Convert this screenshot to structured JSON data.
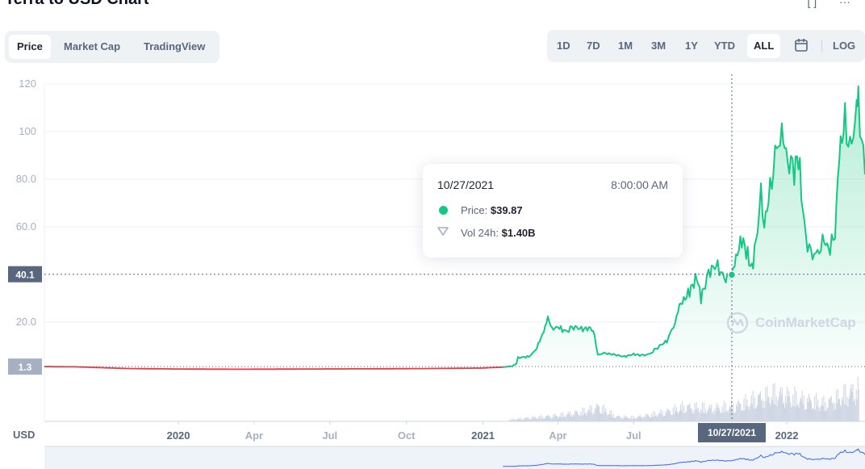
{
  "page": {
    "title": "Terra to USD Chart"
  },
  "tabs": [
    {
      "label": "Price",
      "active": true
    },
    {
      "label": "Market Cap",
      "active": false
    },
    {
      "label": "TradingView",
      "active": false
    }
  ],
  "ranges": [
    {
      "label": "1D",
      "active": false
    },
    {
      "label": "7D",
      "active": false
    },
    {
      "label": "1M",
      "active": false
    },
    {
      "label": "3M",
      "active": false
    },
    {
      "label": "1Y",
      "active": false
    },
    {
      "label": "YTD",
      "active": false
    },
    {
      "label": "ALL",
      "active": true
    }
  ],
  "range_extra": {
    "calendar_icon": "calendar-icon",
    "log_label": "LOG"
  },
  "tooltip": {
    "date": "10/27/2021",
    "time": "8:00:00 AM",
    "price_label": "Price:",
    "price_value": "$39.87",
    "vol_label": "Vol 24h:",
    "vol_value": "$1.40B"
  },
  "watermark": "CoinMarketCap",
  "currency_label": "USD",
  "crosshair": {
    "date_label": "10/27/2021",
    "price_label": "40.1",
    "ref_label": "1.3"
  },
  "colors": {
    "up": "#16c784",
    "down": "#ea3943",
    "volume": "#cfd6e4",
    "grid": "#eff2f5",
    "axis_text": "#a6b0c3"
  },
  "chart_data": {
    "type": "area",
    "y_ticks": [
      "20.0",
      "60.0",
      "80.0",
      "100",
      "120"
    ],
    "ylim": [
      0,
      120
    ],
    "x_ticks": [
      "2020",
      "Apr",
      "Jul",
      "Oct",
      "2021",
      "Apr",
      "Jul",
      "2022"
    ],
    "x_tick_dates": [
      "2020-01-01",
      "2020-04-01",
      "2020-07-01",
      "2020-10-01",
      "2021-01-01",
      "2021-04-01",
      "2021-07-01",
      "2022-01-01"
    ],
    "xlim": [
      "2019-07-24",
      "2022-04-05"
    ],
    "reference_price": 1.3,
    "series": [
      {
        "values": [
          [
            "2019-07-24",
            1.3
          ],
          [
            "2019-09-01",
            1.2
          ],
          [
            "2019-11-01",
            0.5
          ],
          [
            "2020-01-01",
            0.3
          ],
          [
            "2020-03-15",
            0.2
          ],
          [
            "2020-06-01",
            0.3
          ],
          [
            "2020-09-01",
            0.4
          ],
          [
            "2020-11-01",
            0.5
          ],
          [
            "2021-01-01",
            0.7
          ],
          [
            "2021-01-25",
            1.1
          ],
          [
            "2021-02-05",
            1.5
          ],
          [
            "2021-02-10",
            2.5
          ],
          [
            "2021-02-12",
            5.0
          ],
          [
            "2021-02-25",
            5.5
          ],
          [
            "2021-03-05",
            8.0
          ],
          [
            "2021-03-10",
            12.0
          ],
          [
            "2021-03-15",
            16.0
          ],
          [
            "2021-03-20",
            22.0
          ],
          [
            "2021-03-25",
            17.0
          ],
          [
            "2021-04-01",
            18.0
          ],
          [
            "2021-04-10",
            16.0
          ],
          [
            "2021-04-20",
            18.0
          ],
          [
            "2021-05-01",
            17.0
          ],
          [
            "2021-05-10",
            17.5
          ],
          [
            "2021-05-15",
            15.0
          ],
          [
            "2021-05-19",
            6.0
          ],
          [
            "2021-05-25",
            7.0
          ],
          [
            "2021-06-05",
            6.5
          ],
          [
            "2021-06-20",
            5.5
          ],
          [
            "2021-07-01",
            6.5
          ],
          [
            "2021-07-10",
            6.0
          ],
          [
            "2021-07-20",
            6.5
          ],
          [
            "2021-08-01",
            10.0
          ],
          [
            "2021-08-10",
            12.0
          ],
          [
            "2021-08-20",
            20.0
          ],
          [
            "2021-08-25",
            27.0
          ],
          [
            "2021-09-01",
            30.0
          ],
          [
            "2021-09-08",
            34.0
          ],
          [
            "2021-09-15",
            39.0
          ],
          [
            "2021-09-20",
            30.0
          ],
          [
            "2021-09-25",
            36.0
          ],
          [
            "2021-10-01",
            42.0
          ],
          [
            "2021-10-10",
            44.0
          ],
          [
            "2021-10-18",
            38.0
          ],
          [
            "2021-10-27",
            39.87
          ],
          [
            "2021-11-01",
            47.0
          ],
          [
            "2021-11-08",
            55.0
          ],
          [
            "2021-11-15",
            48.0
          ],
          [
            "2021-11-20",
            42.0
          ],
          [
            "2021-11-25",
            54.0
          ],
          [
            "2021-12-01",
            73.0
          ],
          [
            "2021-12-05",
            62.0
          ],
          [
            "2021-12-10",
            70.0
          ],
          [
            "2021-12-18",
            90.0
          ],
          [
            "2021-12-26",
            100.0
          ],
          [
            "2022-01-02",
            88.0
          ],
          [
            "2022-01-10",
            84.0
          ],
          [
            "2022-01-15",
            90.0
          ],
          [
            "2022-01-22",
            60.0
          ],
          [
            "2022-01-28",
            50.0
          ],
          [
            "2022-02-05",
            48.0
          ],
          [
            "2022-02-15",
            54.0
          ],
          [
            "2022-02-22",
            50.0
          ],
          [
            "2022-02-28",
            58.0
          ],
          [
            "2022-03-05",
            90.0
          ],
          [
            "2022-03-12",
            105.0
          ],
          [
            "2022-03-18",
            92.0
          ],
          [
            "2022-03-22",
            100.0
          ],
          [
            "2022-03-26",
            110.0
          ],
          [
            "2022-03-28",
            116.0
          ],
          [
            "2022-04-01",
            95.0
          ],
          [
            "2022-04-05",
            82.0
          ]
        ]
      }
    ],
    "volume": [
      [
        "2021-02-01",
        0.05
      ],
      [
        "2021-03-01",
        0.12
      ],
      [
        "2021-04-01",
        0.18
      ],
      [
        "2021-05-01",
        0.3
      ],
      [
        "2021-05-20",
        0.45
      ],
      [
        "2021-06-10",
        0.15
      ],
      [
        "2021-07-01",
        0.12
      ],
      [
        "2021-08-01",
        0.25
      ],
      [
        "2021-09-01",
        0.45
      ],
      [
        "2021-10-01",
        0.4
      ],
      [
        "2021-10-27",
        0.45
      ],
      [
        "2021-11-15",
        0.6
      ],
      [
        "2021-12-01",
        0.75
      ],
      [
        "2021-12-20",
        0.85
      ],
      [
        "2022-01-15",
        0.7
      ],
      [
        "2022-02-15",
        0.55
      ],
      [
        "2022-03-10",
        0.8
      ],
      [
        "2022-03-28",
        1.0
      ]
    ],
    "hover_date": "2021-10-27",
    "hover_price": 39.87
  }
}
